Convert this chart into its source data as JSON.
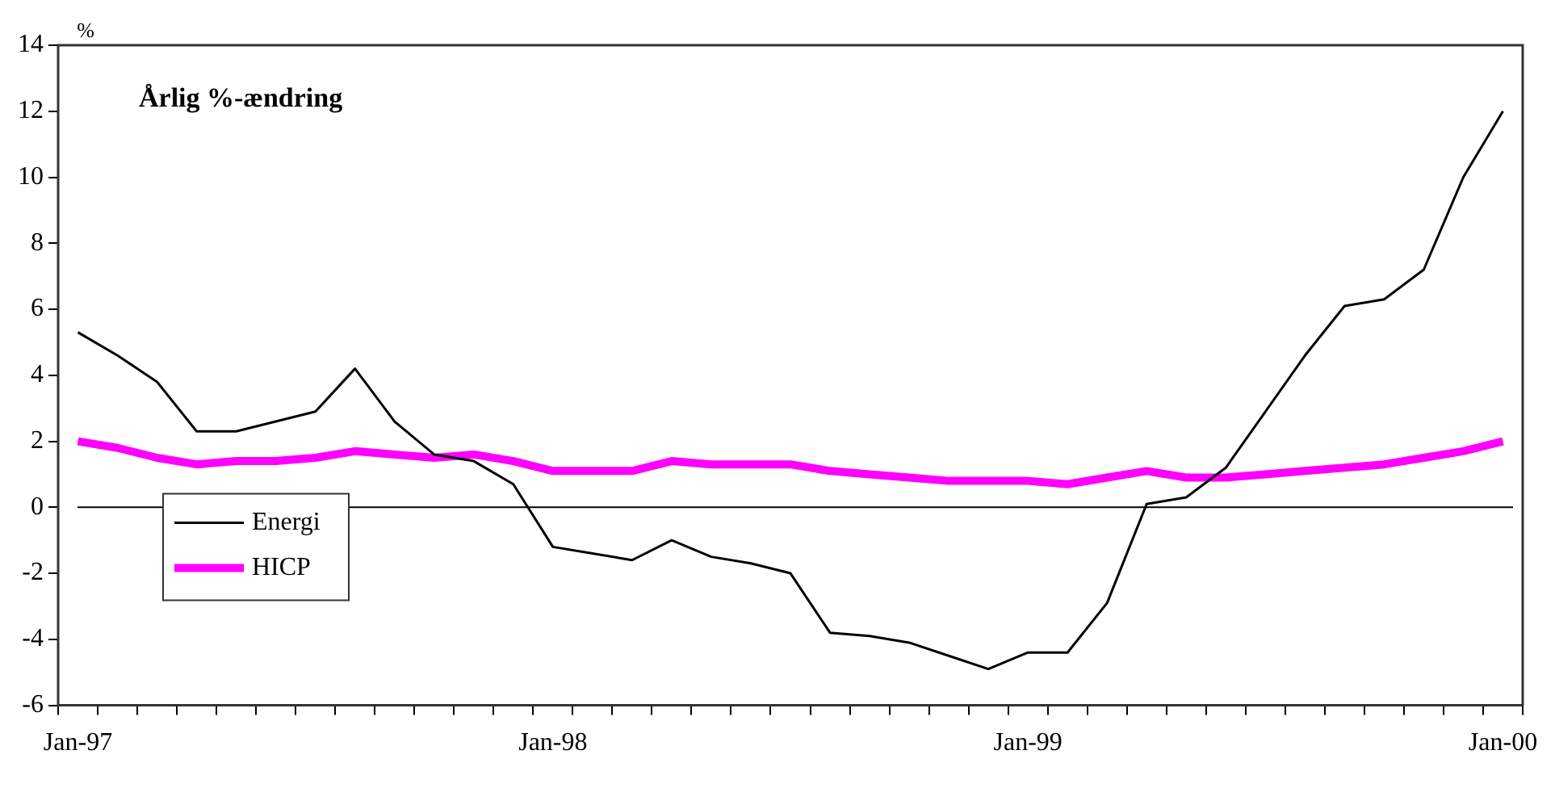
{
  "chart_data": {
    "type": "line",
    "title": "Årlig %-ændring",
    "ylabel": "%",
    "categories": [
      "Jan-97",
      null,
      null,
      null,
      null,
      null,
      null,
      null,
      null,
      null,
      null,
      null,
      "Jan-98",
      null,
      null,
      null,
      null,
      null,
      null,
      null,
      null,
      null,
      null,
      null,
      "Jan-99",
      null,
      null,
      null,
      null,
      null,
      null,
      null,
      null,
      null,
      null,
      null,
      "Jan-00"
    ],
    "series": [
      {
        "name": "Energi",
        "color": "#000000",
        "values": [
          5.3,
          4.6,
          3.8,
          2.3,
          2.3,
          2.6,
          2.9,
          4.2,
          2.6,
          1.6,
          1.4,
          0.7,
          -1.2,
          -1.4,
          -1.6,
          -1.0,
          -1.5,
          -1.7,
          -2.0,
          -3.8,
          -3.9,
          -4.1,
          -4.5,
          -4.9,
          -4.4,
          -4.4,
          -2.9,
          0.1,
          0.3,
          1.2,
          2.9,
          4.6,
          6.1,
          6.3,
          7.2,
          10.0,
          12.0
        ]
      },
      {
        "name": "HICP",
        "color": "#ff00ff",
        "values": [
          2.0,
          1.8,
          1.5,
          1.3,
          1.4,
          1.4,
          1.5,
          1.7,
          1.6,
          1.5,
          1.6,
          1.4,
          1.1,
          1.1,
          1.1,
          1.4,
          1.3,
          1.3,
          1.3,
          1.1,
          1.0,
          0.9,
          0.8,
          0.8,
          0.8,
          0.7,
          0.9,
          1.1,
          0.9,
          0.9,
          1.0,
          1.1,
          1.2,
          1.3,
          1.5,
          1.7,
          2.0
        ]
      }
    ],
    "ylim": [
      -6,
      14
    ],
    "yticks": [
      -6,
      -4,
      -2,
      0,
      2,
      4,
      6,
      8,
      10,
      12,
      14
    ],
    "ref_lines": [
      {
        "axis": "y",
        "value": 0,
        "color": "#000000"
      }
    ],
    "legend": "bottom left",
    "grid": false
  }
}
